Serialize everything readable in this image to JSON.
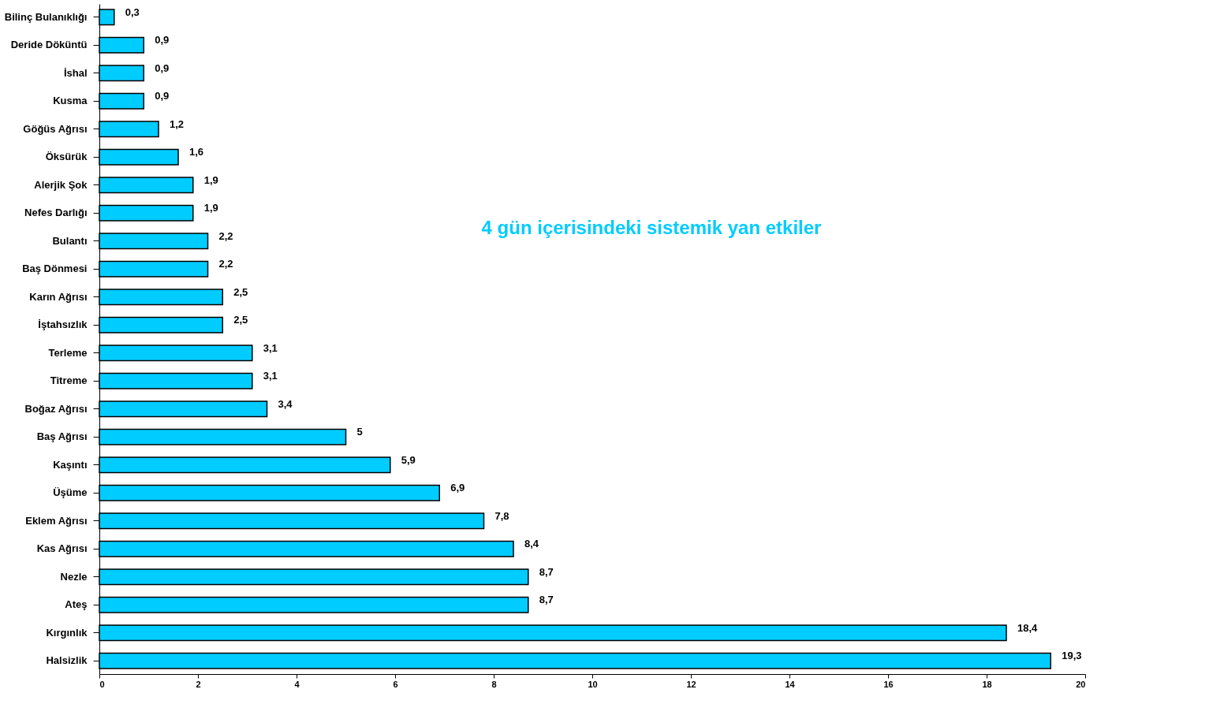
{
  "chart_data": {
    "type": "bar",
    "orientation": "horizontal",
    "title": "4 gün içerisindeki sistemik yan etkiler",
    "categories": [
      "Bilinç Bulanıklığı",
      "Deride Döküntü",
      "İshal",
      "Kusma",
      "Göğüs Ağrısı",
      "Öksürük",
      "Alerjik Şok",
      "Nefes Darlığı",
      "Bulantı",
      "Baş Dönmesi",
      "Karın Ağrısı",
      "İştahsızlık",
      "Terleme",
      "Titreme",
      "Boğaz Ağrısı",
      "Baş Ağrısı",
      "Kaşıntı",
      "Üşüme",
      "Eklem Ağrısı",
      "Kas Ağrısı",
      "Nezle",
      "Ateş",
      "Kırgınlık",
      "Halsizlik"
    ],
    "values": [
      0.3,
      0.9,
      0.9,
      0.9,
      1.2,
      1.6,
      1.9,
      1.9,
      2.2,
      2.2,
      2.5,
      2.5,
      3.1,
      3.1,
      3.4,
      5,
      5.9,
      6.9,
      7.8,
      8.4,
      8.7,
      8.7,
      18.4,
      19.3
    ],
    "value_labels": [
      "0,3",
      "0,9",
      "0,9",
      "0,9",
      "1,2",
      "1,6",
      "1,9",
      "1,9",
      "2,2",
      "2,2",
      "2,5",
      "2,5",
      "3,1",
      "3,1",
      "3,4",
      "5",
      "5,9",
      "6,9",
      "7,8",
      "8,4",
      "8,7",
      "8,7",
      "18,4",
      "19,3"
    ],
    "color": "#00ccff",
    "xlim": [
      0,
      20
    ],
    "xticks": [
      0,
      2,
      4,
      6,
      8,
      10,
      12,
      14,
      16,
      18,
      20
    ],
    "grid": false
  }
}
